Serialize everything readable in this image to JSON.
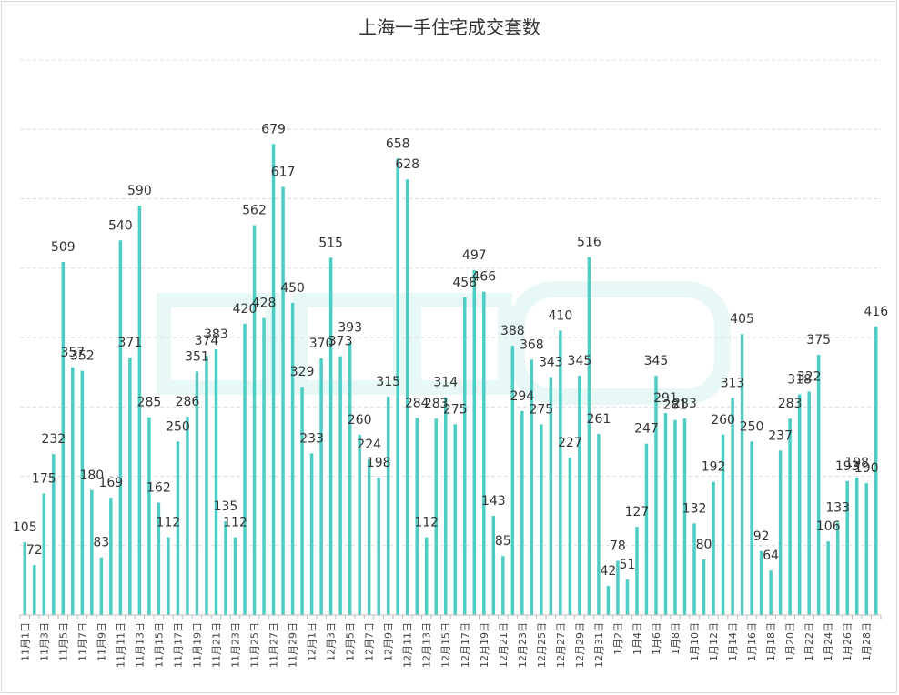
{
  "chart_data": {
    "type": "bar",
    "title": "上海一手住宅成交套数",
    "xlabel": "",
    "ylabel": "",
    "ylim": [
      0,
      800
    ],
    "grid": true,
    "bar_color": "#4ecdc4",
    "categories": [
      "11月1日",
      "11月2日",
      "11月3日",
      "11月4日",
      "11月5日",
      "11月6日",
      "11月7日",
      "11月8日",
      "11月9日",
      "11月10日",
      "11月11日",
      "11月12日",
      "11月13日",
      "11月14日",
      "11月15日",
      "11月16日",
      "11月17日",
      "11月18日",
      "11月19日",
      "11月20日",
      "11月21日",
      "11月22日",
      "11月23日",
      "11月24日",
      "11月25日",
      "11月26日",
      "11月27日",
      "11月28日",
      "11月29日",
      "11月30日",
      "12月1日",
      "12月2日",
      "12月3日",
      "12月4日",
      "12月5日",
      "12月6日",
      "12月7日",
      "12月8日",
      "12月9日",
      "12月10日",
      "12月11日",
      "12月12日",
      "12月13日",
      "12月14日",
      "12月15日",
      "12月16日",
      "12月17日",
      "12月18日",
      "12月19日",
      "12月20日",
      "12月21日",
      "12月22日",
      "12月23日",
      "12月24日",
      "12月25日",
      "12月26日",
      "12月27日",
      "12月28日",
      "12月29日",
      "12月30日",
      "12月31日",
      "1月1日",
      "1月2日",
      "1月3日",
      "1月4日",
      "1月5日",
      "1月6日",
      "1月7日",
      "1月8日",
      "1月9日",
      "1月10日",
      "1月11日",
      "1月12日",
      "1月13日",
      "1月14日",
      "1月15日",
      "1月16日",
      "1月17日",
      "1月18日",
      "1月19日",
      "1月20日",
      "1月21日",
      "1月22日",
      "1月23日",
      "1月24日",
      "1月25日",
      "1月26日",
      "1月27日",
      "1月28日",
      "1月29日"
    ],
    "values": [
      105,
      72,
      175,
      232,
      509,
      357,
      352,
      180,
      83,
      169,
      540,
      371,
      590,
      285,
      162,
      112,
      250,
      286,
      351,
      374,
      383,
      135,
      112,
      420,
      562,
      428,
      679,
      617,
      450,
      329,
      233,
      370,
      515,
      373,
      393,
      260,
      224,
      198,
      315,
      658,
      628,
      284,
      112,
      283,
      314,
      275,
      458,
      497,
      466,
      143,
      85,
      388,
      294,
      368,
      275,
      343,
      410,
      227,
      345,
      516,
      261,
      42,
      78,
      51,
      127,
      247,
      345,
      291,
      281,
      283,
      132,
      80,
      192,
      260,
      313,
      405,
      250,
      92,
      64,
      237,
      283,
      318,
      322,
      375,
      106,
      133,
      193,
      198,
      190,
      416
    ],
    "tick_labels": [
      "11月1日",
      "11月3日",
      "11月5日",
      "11月7日",
      "11月9日",
      "11月11日",
      "11月13日",
      "11月15日",
      "11月17日",
      "11月19日",
      "11月21日",
      "11月23日",
      "11月25日",
      "11月27日",
      "11月29日",
      "12月1日",
      "12月3日",
      "12月5日",
      "12月7日",
      "12月9日",
      "12月11日",
      "12月13日",
      "12月15日",
      "12月17日",
      "12月19日",
      "12月21日",
      "12月23日",
      "12月25日",
      "12月27日",
      "12月29日",
      "12月31日",
      "1月2日",
      "1月4日",
      "1月6日",
      "1月8日",
      "1月10日",
      "1月12日",
      "1月14日",
      "1月16日",
      "1月18日",
      "1月20日",
      "1月22日",
      "1月24日",
      "1月26日",
      "1月28日"
    ]
  }
}
